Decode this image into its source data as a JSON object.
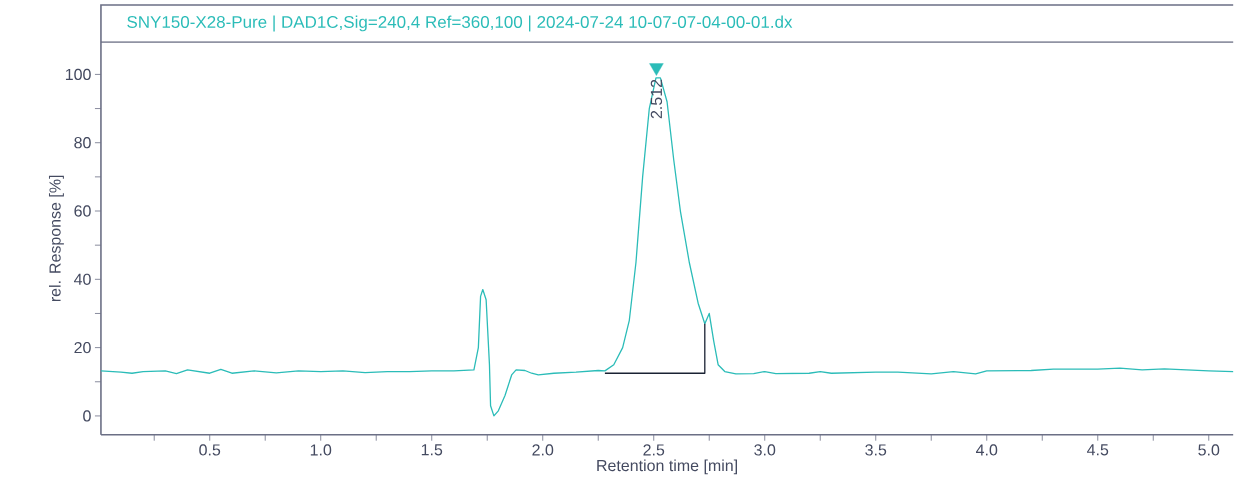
{
  "chart_data": {
    "type": "line",
    "title": "SNY150-X28-Pure | DAD1C,Sig=240,4  Ref=360,100 | 2024-07-24 10-07-07-04-00-01.dx",
    "xlabel": "Retention time [min]",
    "ylabel": "rel. Response [%]",
    "xlim": [
      0.01,
      5.11
    ],
    "ylim": [
      -5.5,
      109.5
    ],
    "xticks": [
      {
        "value": 0.25,
        "label": null
      },
      0.5,
      {
        "value": 0.75,
        "label": null
      },
      {
        "value": 1.0,
        "label": "1.0"
      },
      {
        "value": 1.25,
        "label": null
      },
      1.5,
      {
        "value": 1.75,
        "label": null
      },
      {
        "value": 2.0,
        "label": "2.0"
      },
      {
        "value": 2.25,
        "label": null
      },
      2.5,
      {
        "value": 2.75,
        "label": null
      },
      {
        "value": 3.0,
        "label": "3.0"
      },
      {
        "value": 3.25,
        "label": null
      },
      3.5,
      {
        "value": 3.75,
        "label": null
      },
      {
        "value": 4.0,
        "label": "4.0"
      },
      {
        "value": 4.25,
        "label": null
      },
      4.5,
      {
        "value": 4.75,
        "label": null
      },
      {
        "value": 5.0,
        "label": "5.0"
      }
    ],
    "yticks": [
      0,
      {
        "value": 10,
        "label": null
      },
      20,
      {
        "value": 30,
        "label": null
      },
      40,
      {
        "value": 50,
        "label": null
      },
      60,
      {
        "value": 70,
        "label": null
      },
      80,
      {
        "value": 90,
        "label": null
      },
      100
    ],
    "grid": false,
    "series": [
      {
        "color": "#2bbcb8",
        "x": [
          0.01,
          0.1,
          0.15,
          0.2,
          0.3,
          0.35,
          0.4,
          0.5,
          0.55,
          0.6,
          0.7,
          0.8,
          0.9,
          1.0,
          1.1,
          1.2,
          1.3,
          1.4,
          1.5,
          1.6,
          1.69,
          1.71,
          1.72,
          1.73,
          1.745,
          1.76,
          1.765,
          1.78,
          1.8,
          1.83,
          1.86,
          1.88,
          1.92,
          1.95,
          1.98,
          2.05,
          2.15,
          2.25,
          2.28,
          2.32,
          2.36,
          2.39,
          2.42,
          2.45,
          2.48,
          2.51,
          2.53,
          2.56,
          2.59,
          2.62,
          2.66,
          2.7,
          2.73,
          2.75,
          2.77,
          2.79,
          2.82,
          2.87,
          2.95,
          3.0,
          3.05,
          3.2,
          3.25,
          3.3,
          3.5,
          3.6,
          3.75,
          3.85,
          3.95,
          4.0,
          4.2,
          4.3,
          4.5,
          4.6,
          4.7,
          4.8,
          5.0,
          5.11
        ],
        "values": [
          13.2,
          12.8,
          12.5,
          13,
          13.2,
          12.4,
          13.5,
          12.5,
          13.6,
          12.5,
          13.2,
          12.6,
          13.2,
          13,
          13.2,
          12.7,
          13,
          13,
          13.2,
          13.2,
          13.5,
          20,
          35,
          37,
          34,
          15,
          3,
          0,
          1.5,
          6,
          12,
          13.5,
          13.3,
          12.5,
          12,
          12.5,
          12.8,
          13.3,
          13.2,
          15,
          20,
          28,
          45,
          70,
          90,
          99,
          99,
          92,
          75,
          60,
          45,
          33,
          27,
          30,
          22,
          15,
          13,
          12.3,
          12.4,
          13,
          12.4,
          12.5,
          13,
          12.5,
          12.8,
          12.8,
          12.3,
          13,
          12.3,
          13.2,
          13.3,
          13.7,
          13.7,
          14,
          13.5,
          13.8,
          13.2,
          13
        ]
      },
      {
        "type": "line",
        "color": "#1a2233",
        "x": [
          2.28,
          2.73,
          2.73
        ],
        "values": [
          12.5,
          12.5,
          27
        ]
      },
      {
        "type": "scatter",
        "marker": "triangle",
        "color": "#2bbcb8",
        "x": [
          2.512
        ],
        "values": [
          102
        ]
      }
    ],
    "annotations": [
      {
        "text": "2.512",
        "x": 2.512,
        "y": 99
      }
    ]
  }
}
